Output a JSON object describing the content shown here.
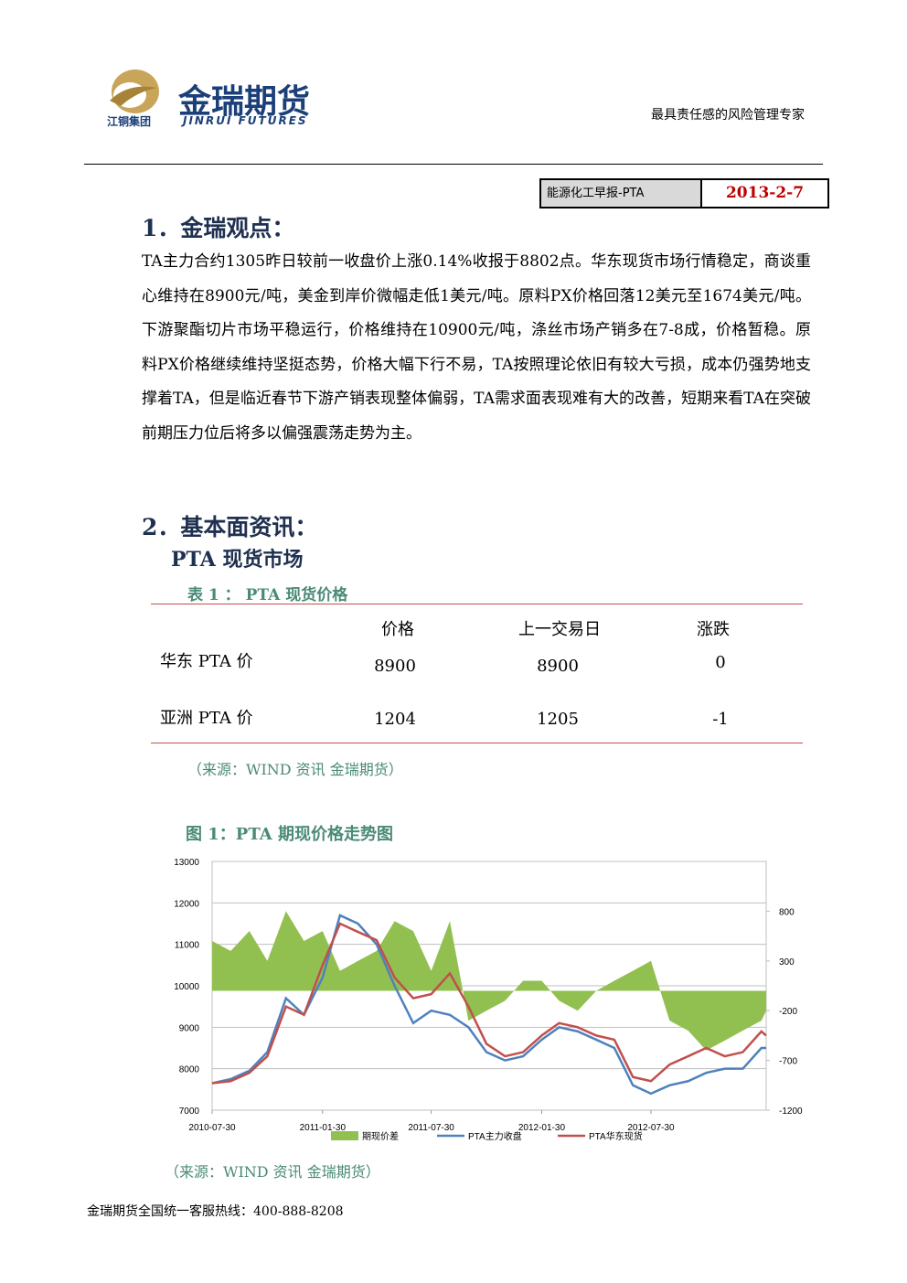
{
  "header": {
    "brand": "金瑞期货",
    "brand_en": "JINRUI FUTURES",
    "group": "江铜集团",
    "slogan": "最具责任感的风险管理专家"
  },
  "report": {
    "name": "能源化工早报-PTA",
    "date": "2013-2-7"
  },
  "section1": {
    "heading": "1．金瑞观点：",
    "text": "TA主力合约1305昨日较前一收盘价上涨0.14%收报于8802点。华东现货市场行情稳定，商谈重心维持在8900元/吨，美金到岸价微幅走低1美元/吨。原料PX价格回落12美元至1674美元/吨。下游聚酯切片市场平稳运行，价格维持在10900元/吨，涤丝市场产销多在7-8成，价格暂稳。原料PX价格继续维持坚挺态势，价格大幅下行不易，TA按照理论依旧有较大亏损，成本仍强势地支撑着TA，但是临近春节下游产销表现整体偏弱，TA需求面表现难有大的改善，短期来看TA在突破前期压力位后将多以偏强震荡走势为主。"
  },
  "section2": {
    "heading": "2．基本面资讯：",
    "subheading": "PTA 现货市场"
  },
  "table": {
    "caption": "表 1 ： PTA 现货价格",
    "columns": [
      "价格",
      "上一交易日",
      "涨跌"
    ],
    "rows": [
      [
        "华东 PTA 价",
        8900,
        8900,
        0
      ],
      [
        "亚洲 PTA 价",
        1204,
        1205,
        -1
      ]
    ],
    "source": "（来源：WIND 资讯  金瑞期货）"
  },
  "figure": {
    "title": "图 1：PTA 期现价格走势图",
    "source": "（来源：WIND 资讯  金瑞期货）"
  },
  "chart_data": {
    "type": "line",
    "x": [
      "2010-07-30",
      "2010-08-30",
      "2010-09-30",
      "2010-10-30",
      "2010-11-30",
      "2010-12-30",
      "2011-01-30",
      "2011-02-28",
      "2011-03-30",
      "2011-04-30",
      "2011-05-30",
      "2011-06-30",
      "2011-07-30",
      "2011-08-30",
      "2011-09-30",
      "2011-10-30",
      "2011-11-30",
      "2011-12-30",
      "2012-01-30",
      "2012-02-28",
      "2012-03-30",
      "2012-04-30",
      "2012-05-30",
      "2012-06-30",
      "2012-07-30",
      "2012-08-30",
      "2012-09-30",
      "2012-10-30",
      "2012-11-30",
      "2012-12-30",
      "2013-01-30",
      "2013-02-07"
    ],
    "xlim": [
      "2010-07-30",
      "2013-02-07"
    ],
    "xticks": [
      "2010-07-30",
      "2011-01-30",
      "2011-07-30",
      "2012-01-30",
      "2012-07-30"
    ],
    "ylim": [
      7000,
      13000
    ],
    "yticks": [
      7000,
      8000,
      9000,
      10000,
      11000,
      12000,
      13000
    ],
    "y2lim": [
      -1200,
      1300
    ],
    "y2ticks": [
      -1200,
      -700,
      -200,
      300,
      800
    ],
    "grid": true,
    "legend": "bottom",
    "series": [
      {
        "name": "期现价差",
        "color": "#92c050",
        "axis": "y2",
        "kind": "area",
        "values": [
          500,
          400,
          600,
          300,
          800,
          500,
          600,
          200,
          300,
          400,
          700,
          600,
          200,
          700,
          -300,
          -200,
          -100,
          100,
          100,
          -100,
          -200,
          0,
          100,
          200,
          300,
          -300,
          -400,
          -600,
          -500,
          -400,
          -300,
          -200
        ]
      },
      {
        "name": "PTA主力收盘",
        "color": "#4f81bd",
        "values": [
          7650,
          7750,
          7950,
          8400,
          9700,
          9300,
          10200,
          11700,
          11500,
          11000,
          10000,
          9100,
          9400,
          9300,
          9000,
          8400,
          8200,
          8300,
          8700,
          9000,
          8900,
          8700,
          8500,
          7600,
          7400,
          7600,
          7700,
          7900,
          8000,
          8000,
          8500,
          8500
        ]
      },
      {
        "name": "PTA华东现货",
        "color": "#c0504d",
        "values": [
          7650,
          7700,
          7900,
          8300,
          9500,
          9300,
          10500,
          11500,
          11300,
          11100,
          10200,
          9700,
          9800,
          10300,
          9500,
          8600,
          8300,
          8400,
          8800,
          9100,
          9000,
          8800,
          8700,
          7800,
          7700,
          8100,
          8300,
          8500,
          8300,
          8400,
          8900,
          8800
        ]
      }
    ]
  },
  "footer": "金瑞期货全国统一客服热线：400-888-8208"
}
